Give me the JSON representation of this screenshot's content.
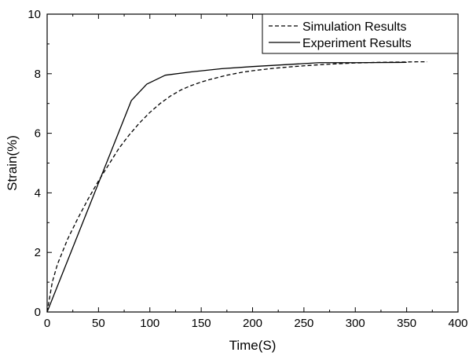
{
  "chart_data": {
    "type": "line",
    "title": "",
    "xlabel": "Time(S)",
    "ylabel": "Strain(%)",
    "xlim": [
      0,
      400
    ],
    "ylim": [
      0,
      10
    ],
    "x_ticks": [
      0,
      50,
      100,
      150,
      200,
      250,
      300,
      350,
      400
    ],
    "y_ticks": [
      0,
      2,
      4,
      6,
      8,
      10
    ],
    "grid": false,
    "legend_position": "top-right",
    "series": [
      {
        "name": "Simulation Results",
        "line_style": "dashed",
        "color": "#000000",
        "x": [
          0,
          5,
          10,
          20,
          30,
          40,
          50,
          60,
          70,
          80,
          90,
          100,
          110,
          120,
          130,
          140,
          150,
          160,
          175,
          190,
          200,
          220,
          240,
          260,
          280,
          300,
          320,
          340,
          360,
          370
        ],
        "y": [
          0,
          1.0,
          1.6,
          2.45,
          3.15,
          3.8,
          4.4,
          4.95,
          5.5,
          5.95,
          6.35,
          6.7,
          7.0,
          7.25,
          7.45,
          7.6,
          7.72,
          7.82,
          7.95,
          8.05,
          8.1,
          8.18,
          8.24,
          8.29,
          8.33,
          8.36,
          8.38,
          8.39,
          8.4,
          8.4
        ]
      },
      {
        "name": "Experiment Results",
        "line_style": "solid",
        "color": "#000000",
        "x": [
          0,
          82,
          97,
          115,
          140,
          170,
          200,
          230,
          265,
          300,
          350
        ],
        "y": [
          0,
          7.1,
          7.65,
          7.95,
          8.06,
          8.17,
          8.24,
          8.3,
          8.37,
          8.37,
          8.38
        ]
      }
    ]
  }
}
